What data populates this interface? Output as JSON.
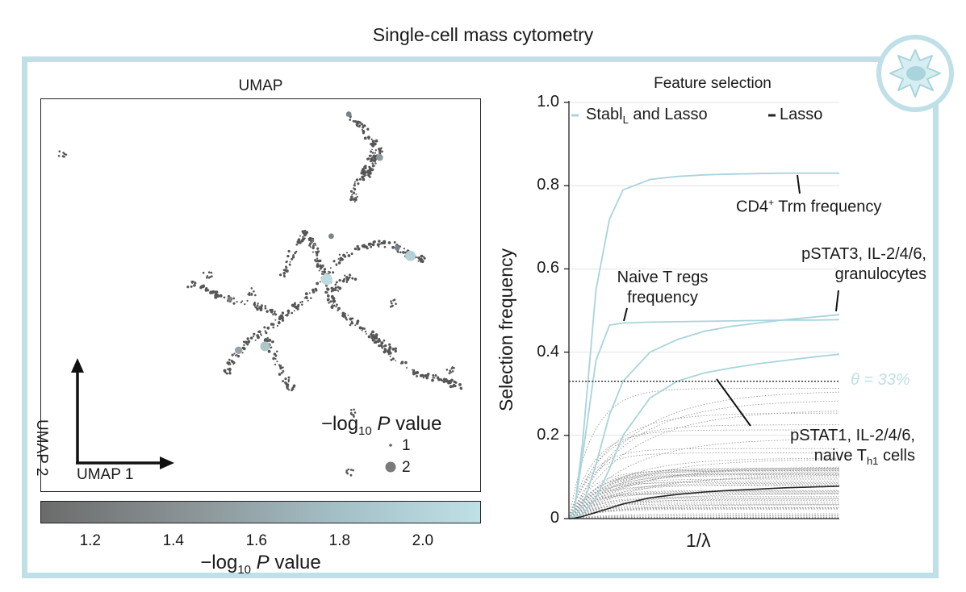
{
  "title": "Single-cell mass cytometry",
  "umap": {
    "title": "UMAP",
    "x_label": "UMAP 1",
    "y_label": "UMAP 2",
    "size_legend": {
      "title_prefix": "−log",
      "title_sub": "10",
      "title_p": "P",
      "title_suffix": " value",
      "entries": [
        "1",
        "2"
      ]
    },
    "colorbar": {
      "ticks": [
        "1.2",
        "1.4",
        "1.6",
        "1.8",
        "2.0"
      ],
      "label_prefix": "−log",
      "label_sub": "10",
      "label_p": "P",
      "label_suffix": " value",
      "range": [
        1.08,
        2.14
      ],
      "low_color": "#6b6b6b",
      "high_color": "#bfe0e6"
    }
  },
  "feature_selection": {
    "title": "Feature selection",
    "legend": {
      "stabl_prefix": "Stabl",
      "stabl_sub": "L",
      "stabl_suffix": " and Lasso",
      "lasso": "Lasso"
    },
    "threshold_label": "θ = 33%",
    "annotations": {
      "cd4_a": "CD4",
      "cd4_sup": "+",
      "cd4_b": " Trm frequency",
      "naive_tregs_1": "Naive T regs",
      "naive_tregs_2": "frequency",
      "pstat3_1": "pSTAT3, IL-2/4/6,",
      "pstat3_2": "granulocytes",
      "pstat1_1": "pSTAT1, IL-2/4/6,",
      "pstat1_2a": "naive T",
      "pstat1_2sub": "h1",
      "pstat1_2b": " cells"
    }
  },
  "colors": {
    "stabl": "#a8d4dc",
    "lasso": "#222222",
    "background_lines": "#9a9a9a",
    "frame": "#bfe0e6",
    "threshold_text": "#bfe0e6"
  },
  "chart_data": [
    {
      "type": "scatter",
      "title": "UMAP",
      "xlabel": "UMAP 1",
      "ylabel": "UMAP 2",
      "color_variable": "−log10 P value",
      "color_range": [
        1.08,
        2.14
      ],
      "size_legend_values": [
        1,
        2
      ],
      "highlighted_points": [
        {
          "x": 0.65,
          "y": 0.54,
          "p": 2.1
        },
        {
          "x": 0.84,
          "y": 0.6,
          "p": 2.0
        },
        {
          "x": 0.51,
          "y": 0.37,
          "p": 1.9
        },
        {
          "x": 0.45,
          "y": 0.36,
          "p": 1.6
        },
        {
          "x": 0.77,
          "y": 0.85,
          "p": 1.5
        },
        {
          "x": 0.7,
          "y": 0.96,
          "p": 1.3
        },
        {
          "x": 0.43,
          "y": 0.49,
          "p": 1.3
        },
        {
          "x": 0.66,
          "y": 0.65,
          "p": 1.3
        },
        {
          "x": 0.81,
          "y": 0.62,
          "p": 1.3
        }
      ]
    },
    {
      "type": "line",
      "title": "Feature selection",
      "xlabel": "1/λ",
      "ylabel": "Selection frequency",
      "ylim": [
        0,
        1.0
      ],
      "yticks": [
        0,
        0.2,
        0.4,
        0.6,
        0.8,
        1.0
      ],
      "ytick_labels": [
        "0",
        "0.2",
        "0.4",
        "0.6",
        "0.8",
        "1.0"
      ],
      "x_normalized": [
        0,
        0.02,
        0.05,
        0.1,
        0.15,
        0.2,
        0.3,
        0.4,
        0.5,
        0.6,
        0.7,
        0.8,
        0.9,
        1.0
      ],
      "threshold": 0.33,
      "series": [
        {
          "name": "CD4+ Trm frequency",
          "group": "Stabl",
          "values": [
            0,
            0.02,
            0.18,
            0.55,
            0.72,
            0.79,
            0.815,
            0.822,
            0.826,
            0.828,
            0.829,
            0.83,
            0.83,
            0.83
          ]
        },
        {
          "name": "Naive T regs frequency",
          "group": "Stabl",
          "values": [
            0,
            0.02,
            0.15,
            0.38,
            0.465,
            0.47,
            0.472,
            0.473,
            0.474,
            0.475,
            0.476,
            0.477,
            0.477,
            0.478
          ]
        },
        {
          "name": "pSTAT3, IL-2/4/6, granulocytes",
          "group": "Stabl",
          "values": [
            0,
            0.005,
            0.03,
            0.13,
            0.25,
            0.33,
            0.4,
            0.43,
            0.45,
            0.462,
            0.47,
            0.478,
            0.484,
            0.49
          ]
        },
        {
          "name": "pSTAT1, IL-2/4/6, naive Th1 cells",
          "group": "Stabl",
          "values": [
            0,
            0.002,
            0.01,
            0.05,
            0.12,
            0.2,
            0.29,
            0.33,
            0.35,
            0.362,
            0.372,
            0.38,
            0.388,
            0.395
          ]
        },
        {
          "name": "Lasso",
          "group": "Lasso",
          "values": [
            0,
            0.001,
            0.005,
            0.015,
            0.025,
            0.035,
            0.05,
            0.058,
            0.064,
            0.068,
            0.071,
            0.074,
            0.076,
            0.078
          ]
        }
      ]
    }
  ]
}
